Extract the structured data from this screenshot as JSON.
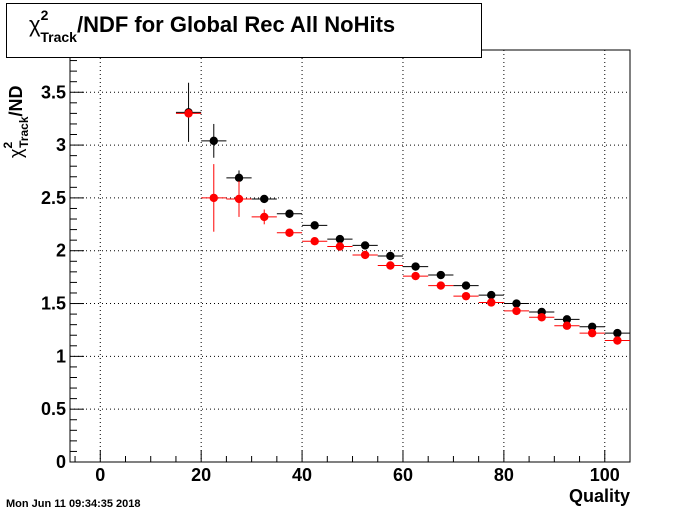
{
  "chart_data": {
    "type": "scatter",
    "title": "/NDF for Global Rec All NoHits",
    "title_prefix": {
      "chi": "χ",
      "sup": "2",
      "sub": "Track"
    },
    "xlabel": "Quality",
    "ylabel_suffix": "/ND",
    "ylabel_prefix": {
      "chi": "χ",
      "sup": "2",
      "sub": "Track"
    },
    "xlim": [
      -6,
      105
    ],
    "ylim": [
      0,
      3.9
    ],
    "x_ticks": [
      0,
      20,
      40,
      60,
      80,
      100
    ],
    "y_ticks": [
      0,
      0.5,
      1,
      1.5,
      2,
      2.5,
      3,
      3.5
    ],
    "y_tick_labels": [
      "0",
      "0.5",
      "1",
      "1.5",
      "2",
      "2.5",
      "3",
      "3.5"
    ],
    "grid": true,
    "bin_half_width": 2.5,
    "series": [
      {
        "color": "#000000",
        "points": [
          {
            "x": 17.5,
            "y": 3.31,
            "err": 0.28
          },
          {
            "x": 22.5,
            "y": 3.04,
            "err": 0.16
          },
          {
            "x": 27.5,
            "y": 2.69,
            "err": 0.07
          },
          {
            "x": 32.5,
            "y": 2.49,
            "err": 0.03
          },
          {
            "x": 37.5,
            "y": 2.35,
            "err": 0.02
          },
          {
            "x": 42.5,
            "y": 2.24,
            "err": 0.02
          },
          {
            "x": 47.5,
            "y": 2.11,
            "err": 0.02
          },
          {
            "x": 52.5,
            "y": 2.05,
            "err": 0.02
          },
          {
            "x": 57.5,
            "y": 1.95,
            "err": 0.02
          },
          {
            "x": 62.5,
            "y": 1.85,
            "err": 0.02
          },
          {
            "x": 67.5,
            "y": 1.77,
            "err": 0.02
          },
          {
            "x": 72.5,
            "y": 1.67,
            "err": 0.02
          },
          {
            "x": 77.5,
            "y": 1.58,
            "err": 0.02
          },
          {
            "x": 82.5,
            "y": 1.5,
            "err": 0.02
          },
          {
            "x": 87.5,
            "y": 1.42,
            "err": 0.02
          },
          {
            "x": 92.5,
            "y": 1.35,
            "err": 0.02
          },
          {
            "x": 97.5,
            "y": 1.28,
            "err": 0.02
          },
          {
            "x": 102.5,
            "y": 1.22,
            "err": 0.02
          }
        ]
      },
      {
        "color": "#ff0000",
        "points": [
          {
            "x": 17.5,
            "y": 3.3,
            "err": 0.04
          },
          {
            "x": 22.5,
            "y": 2.5,
            "err": 0.32
          },
          {
            "x": 27.5,
            "y": 2.49,
            "err": 0.17
          },
          {
            "x": 32.5,
            "y": 2.32,
            "err": 0.07
          },
          {
            "x": 37.5,
            "y": 2.17,
            "err": 0.03
          },
          {
            "x": 42.5,
            "y": 2.09,
            "err": 0.02
          },
          {
            "x": 47.5,
            "y": 2.04,
            "err": 0.02
          },
          {
            "x": 52.5,
            "y": 1.96,
            "err": 0.02
          },
          {
            "x": 57.5,
            "y": 1.86,
            "err": 0.02
          },
          {
            "x": 62.5,
            "y": 1.76,
            "err": 0.02
          },
          {
            "x": 67.5,
            "y": 1.67,
            "err": 0.02
          },
          {
            "x": 72.5,
            "y": 1.57,
            "err": 0.02
          },
          {
            "x": 77.5,
            "y": 1.51,
            "err": 0.02
          },
          {
            "x": 82.5,
            "y": 1.43,
            "err": 0.02
          },
          {
            "x": 87.5,
            "y": 1.37,
            "err": 0.02
          },
          {
            "x": 92.5,
            "y": 1.29,
            "err": 0.02
          },
          {
            "x": 97.5,
            "y": 1.22,
            "err": 0.02
          },
          {
            "x": 102.5,
            "y": 1.15,
            "err": 0.02
          }
        ]
      }
    ]
  },
  "timestamp": "Mon Jun 11 09:34:35 2018"
}
